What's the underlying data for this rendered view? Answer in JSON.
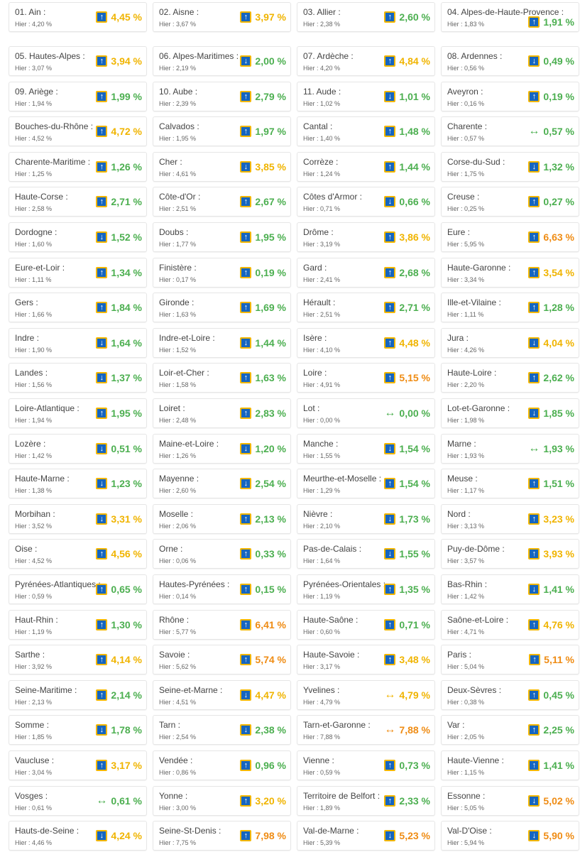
{
  "colors": {
    "green": "#4caf50",
    "yellow": "#f0b400",
    "orange": "#ef8c14",
    "icon_bg": "#1565c0",
    "icon_border": "#f2b600"
  },
  "icons": {
    "up": "arrow-up-icon",
    "down": "arrow-down-icon",
    "stable": "arrow-left-right-icon"
  },
  "glyphs": {
    "up": "↑",
    "down": "↓",
    "stable": "↔"
  },
  "departments": [
    {
      "name": "01. Ain :",
      "yesterday": "Hier : 4,20 %",
      "value": "4,45 %",
      "trend": "up",
      "color": "yellow"
    },
    {
      "name": "02. Aisne :",
      "yesterday": "Hier : 3,67 %",
      "value": "3,97 %",
      "trend": "up",
      "color": "yellow"
    },
    {
      "name": "03. Allier :",
      "yesterday": "Hier : 2,38 %",
      "value": "2,60 %",
      "trend": "up",
      "color": "green"
    },
    {
      "name": "04. Alpes-de-Haute-Provence :",
      "yesterday": "Hier : 1,83 %",
      "value": "1,91 %",
      "trend": "up",
      "color": "green"
    },
    {
      "name": "05. Hautes-Alpes :",
      "yesterday": "Hier : 3,07 %",
      "value": "3,94 %",
      "trend": "up",
      "color": "yellow"
    },
    {
      "name": "06. Alpes-Maritimes :",
      "yesterday": "Hier : 2,19 %",
      "value": "2,00 %",
      "trend": "down",
      "color": "green"
    },
    {
      "name": "07. Ardèche :",
      "yesterday": "Hier : 4,20 %",
      "value": "4,84 %",
      "trend": "up",
      "color": "yellow"
    },
    {
      "name": "08. Ardennes :",
      "yesterday": "Hier : 0,56 %",
      "value": "0,49 %",
      "trend": "down",
      "color": "green"
    },
    {
      "name": "09. Ariège :",
      "yesterday": "Hier : 1,94 %",
      "value": "1,99 %",
      "trend": "up",
      "color": "green"
    },
    {
      "name": "10. Aube :",
      "yesterday": "Hier : 2,39 %",
      "value": "2,79 %",
      "trend": "up",
      "color": "green"
    },
    {
      "name": "11. Aude :",
      "yesterday": "Hier : 1,02 %",
      "value": "1,01 %",
      "trend": "down",
      "color": "green"
    },
    {
      "name": "Aveyron :",
      "yesterday": "Hier : 0,16 %",
      "value": "0,19 %",
      "trend": "up",
      "color": "green"
    },
    {
      "name": "Bouches-du-Rhône :",
      "yesterday": "Hier : 4,52 %",
      "value": "4,72 %",
      "trend": "up",
      "color": "yellow"
    },
    {
      "name": "Calvados :",
      "yesterday": "Hier : 1,95 %",
      "value": "1,97 %",
      "trend": "up",
      "color": "green"
    },
    {
      "name": "Cantal :",
      "yesterday": "Hier : 1,40 %",
      "value": "1,48 %",
      "trend": "up",
      "color": "green"
    },
    {
      "name": "Charente :",
      "yesterday": "Hier : 0,57 %",
      "value": "0,57 %",
      "trend": "stable",
      "color": "green"
    },
    {
      "name": "Charente-Maritime :",
      "yesterday": "Hier : 1,25 %",
      "value": "1,26 %",
      "trend": "up",
      "color": "green"
    },
    {
      "name": "Cher :",
      "yesterday": "Hier : 4,61 %",
      "value": "3,85 %",
      "trend": "down",
      "color": "yellow"
    },
    {
      "name": "Corrèze :",
      "yesterday": "Hier : 1,24 %",
      "value": "1,44 %",
      "trend": "up",
      "color": "green"
    },
    {
      "name": "Corse-du-Sud :",
      "yesterday": "Hier : 1,75 %",
      "value": "1,32 %",
      "trend": "down",
      "color": "green"
    },
    {
      "name": "Haute-Corse :",
      "yesterday": "Hier : 2,58 %",
      "value": "2,71 %",
      "trend": "up",
      "color": "green"
    },
    {
      "name": "Côte-d'Or :",
      "yesterday": "Hier : 2,51 %",
      "value": "2,67 %",
      "trend": "up",
      "color": "green"
    },
    {
      "name": "Côtes d'Armor :",
      "yesterday": "Hier : 0,71 %",
      "value": "0,66 %",
      "trend": "down",
      "color": "green"
    },
    {
      "name": "Creuse :",
      "yesterday": "Hier : 0,25 %",
      "value": "0,27 %",
      "trend": "up",
      "color": "green"
    },
    {
      "name": "Dordogne :",
      "yesterday": "Hier : 1,60 %",
      "value": "1,52 %",
      "trend": "down",
      "color": "green"
    },
    {
      "name": "Doubs :",
      "yesterday": "Hier : 1,77 %",
      "value": "1,95 %",
      "trend": "up",
      "color": "green"
    },
    {
      "name": "Drôme :",
      "yesterday": "Hier : 3,19 %",
      "value": "3,86 %",
      "trend": "up",
      "color": "yellow"
    },
    {
      "name": "Eure :",
      "yesterday": "Hier : 5,95 %",
      "value": "6,63 %",
      "trend": "up",
      "color": "orange"
    },
    {
      "name": "Eure-et-Loir :",
      "yesterday": "Hier : 1,11 %",
      "value": "1,34 %",
      "trend": "up",
      "color": "green"
    },
    {
      "name": "Finistère :",
      "yesterday": "Hier : 0,17 %",
      "value": "0,19 %",
      "trend": "up",
      "color": "green"
    },
    {
      "name": "Gard :",
      "yesterday": "Hier : 2,41 %",
      "value": "2,68 %",
      "trend": "up",
      "color": "green"
    },
    {
      "name": "Haute-Garonne :",
      "yesterday": "Hier : 3,34 %",
      "value": "3,54 %",
      "trend": "up",
      "color": "yellow"
    },
    {
      "name": "Gers :",
      "yesterday": "Hier : 1,66 %",
      "value": "1,84 %",
      "trend": "up",
      "color": "green"
    },
    {
      "name": "Gironde :",
      "yesterday": "Hier : 1,63 %",
      "value": "1,69 %",
      "trend": "up",
      "color": "green"
    },
    {
      "name": "Hérault :",
      "yesterday": "Hier : 2,51 %",
      "value": "2,71 %",
      "trend": "up",
      "color": "green"
    },
    {
      "name": "Ille-et-Vilaine :",
      "yesterday": "Hier : 1,11 %",
      "value": "1,28 %",
      "trend": "up",
      "color": "green"
    },
    {
      "name": "Indre :",
      "yesterday": "Hier : 1,90 %",
      "value": "1,64 %",
      "trend": "down",
      "color": "green"
    },
    {
      "name": "Indre-et-Loire :",
      "yesterday": "Hier : 1,52 %",
      "value": "1,44 %",
      "trend": "down",
      "color": "green"
    },
    {
      "name": "Isère :",
      "yesterday": "Hier : 4,10 %",
      "value": "4,48 %",
      "trend": "up",
      "color": "yellow"
    },
    {
      "name": "Jura :",
      "yesterday": "Hier : 4,26 %",
      "value": "4,04 %",
      "trend": "down",
      "color": "yellow"
    },
    {
      "name": "Landes :",
      "yesterday": "Hier : 1,56 %",
      "value": "1,37 %",
      "trend": "down",
      "color": "green"
    },
    {
      "name": "Loir-et-Cher :",
      "yesterday": "Hier : 1,58 %",
      "value": "1,63 %",
      "trend": "up",
      "color": "green"
    },
    {
      "name": "Loire :",
      "yesterday": "Hier : 4,91 %",
      "value": "5,15 %",
      "trend": "up",
      "color": "orange"
    },
    {
      "name": "Haute-Loire :",
      "yesterday": "Hier : 2,20 %",
      "value": "2,62 %",
      "trend": "up",
      "color": "green"
    },
    {
      "name": "Loire-Atlantique :",
      "yesterday": "Hier : 1,94 %",
      "value": "1,95 %",
      "trend": "up",
      "color": "green"
    },
    {
      "name": "Loiret :",
      "yesterday": "Hier : 2,48 %",
      "value": "2,83 %",
      "trend": "up",
      "color": "green"
    },
    {
      "name": "Lot :",
      "yesterday": "Hier : 0,00 %",
      "value": "0,00 %",
      "trend": "stable",
      "color": "green"
    },
    {
      "name": "Lot-et-Garonne :",
      "yesterday": "Hier : 1,98 %",
      "value": "1,85 %",
      "trend": "down",
      "color": "green"
    },
    {
      "name": "Lozère :",
      "yesterday": "Hier : 1,42 %",
      "value": "0,51 %",
      "trend": "down",
      "color": "green"
    },
    {
      "name": "Maine-et-Loire :",
      "yesterday": "Hier : 1,26 %",
      "value": "1,20 %",
      "trend": "down",
      "color": "green"
    },
    {
      "name": "Manche :",
      "yesterday": "Hier : 1,55 %",
      "value": "1,54 %",
      "trend": "down",
      "color": "green"
    },
    {
      "name": "Marne :",
      "yesterday": "Hier : 1,93 %",
      "value": "1,93 %",
      "trend": "stable",
      "color": "green"
    },
    {
      "name": "Haute-Marne :",
      "yesterday": "Hier : 1,38 %",
      "value": "1,23 %",
      "trend": "down",
      "color": "green"
    },
    {
      "name": "Mayenne :",
      "yesterday": "Hier : 2,60 %",
      "value": "2,54 %",
      "trend": "down",
      "color": "green"
    },
    {
      "name": "Meurthe-et-Moselle :",
      "yesterday": "Hier : 1,29 %",
      "value": "1,54 %",
      "trend": "up",
      "color": "green"
    },
    {
      "name": "Meuse :",
      "yesterday": "Hier : 1,17 %",
      "value": "1,51 %",
      "trend": "up",
      "color": "green"
    },
    {
      "name": "Morbihan :",
      "yesterday": "Hier : 3,52 %",
      "value": "3,31 %",
      "trend": "down",
      "color": "yellow"
    },
    {
      "name": "Moselle :",
      "yesterday": "Hier : 2,06 %",
      "value": "2,13 %",
      "trend": "up",
      "color": "green"
    },
    {
      "name": "Nièvre :",
      "yesterday": "Hier : 2,10 %",
      "value": "1,73 %",
      "trend": "down",
      "color": "green"
    },
    {
      "name": "Nord :",
      "yesterday": "Hier : 3,13 %",
      "value": "3,23 %",
      "trend": "up",
      "color": "yellow"
    },
    {
      "name": "Oise :",
      "yesterday": "Hier : 4,52 %",
      "value": "4,56 %",
      "trend": "up",
      "color": "yellow"
    },
    {
      "name": "Orne :",
      "yesterday": "Hier : 0,06 %",
      "value": "0,33 %",
      "trend": "up",
      "color": "green"
    },
    {
      "name": "Pas-de-Calais :",
      "yesterday": "Hier : 1,64 %",
      "value": "1,55 %",
      "trend": "down",
      "color": "green"
    },
    {
      "name": "Puy-de-Dôme :",
      "yesterday": "Hier : 3,57 %",
      "value": "3,93 %",
      "trend": "up",
      "color": "yellow"
    },
    {
      "name": "Pyrénées-Atlantiques :",
      "yesterday": "Hier : 0,59 %",
      "value": "0,65 %",
      "trend": "up",
      "color": "green"
    },
    {
      "name": "Hautes-Pyrénées :",
      "yesterday": "Hier : 0,14 %",
      "value": "0,15 %",
      "trend": "up",
      "color": "green"
    },
    {
      "name": "Pyrénées-Orientales :",
      "yesterday": "Hier : 1,19 %",
      "value": "1,35 %",
      "trend": "up",
      "color": "green"
    },
    {
      "name": "Bas-Rhin :",
      "yesterday": "Hier : 1,42 %",
      "value": "1,41 %",
      "trend": "down",
      "color": "green"
    },
    {
      "name": "Haut-Rhin :",
      "yesterday": "Hier : 1,19 %",
      "value": "1,30 %",
      "trend": "up",
      "color": "green"
    },
    {
      "name": "Rhône :",
      "yesterday": "Hier : 5,77 %",
      "value": "6,41 %",
      "trend": "up",
      "color": "orange"
    },
    {
      "name": "Haute-Saône :",
      "yesterday": "Hier : 0,60 %",
      "value": "0,71 %",
      "trend": "up",
      "color": "green"
    },
    {
      "name": "Saône-et-Loire :",
      "yesterday": "Hier : 4,71 %",
      "value": "4,76 %",
      "trend": "up",
      "color": "yellow"
    },
    {
      "name": "Sarthe :",
      "yesterday": "Hier : 3,92 %",
      "value": "4,14 %",
      "trend": "up",
      "color": "yellow"
    },
    {
      "name": "Savoie :",
      "yesterday": "Hier : 5,62 %",
      "value": "5,74 %",
      "trend": "up",
      "color": "orange"
    },
    {
      "name": "Haute-Savoie :",
      "yesterday": "Hier : 3,17 %",
      "value": "3,48 %",
      "trend": "up",
      "color": "yellow"
    },
    {
      "name": "Paris :",
      "yesterday": "Hier : 5,04 %",
      "value": "5,11 %",
      "trend": "up",
      "color": "orange"
    },
    {
      "name": "Seine-Maritime :",
      "yesterday": "Hier : 2,13 %",
      "value": "2,14 %",
      "trend": "up",
      "color": "green"
    },
    {
      "name": "Seine-et-Marne :",
      "yesterday": "Hier : 4,51 %",
      "value": "4,47 %",
      "trend": "down",
      "color": "yellow"
    },
    {
      "name": "Yvelines :",
      "yesterday": "Hier : 4,79 %",
      "value": "4,79 %",
      "trend": "stable",
      "color": "yellow"
    },
    {
      "name": "Deux-Sèvres :",
      "yesterday": "Hier : 0,38 %",
      "value": "0,45 %",
      "trend": "up",
      "color": "green"
    },
    {
      "name": "Somme :",
      "yesterday": "Hier : 1,85 %",
      "value": "1,78 %",
      "trend": "down",
      "color": "green"
    },
    {
      "name": "Tarn :",
      "yesterday": "Hier : 2,54 %",
      "value": "2,38 %",
      "trend": "down",
      "color": "green"
    },
    {
      "name": "Tarn-et-Garonne :",
      "yesterday": "Hier : 7,88 %",
      "value": "7,88 %",
      "trend": "stable",
      "color": "orange"
    },
    {
      "name": "Var :",
      "yesterday": "Hier : 2,05 %",
      "value": "2,25 %",
      "trend": "up",
      "color": "green"
    },
    {
      "name": "Vaucluse :",
      "yesterday": "Hier : 3,04 %",
      "value": "3,17 %",
      "trend": "up",
      "color": "yellow"
    },
    {
      "name": "Vendée :",
      "yesterday": "Hier : 0,86 %",
      "value": "0,96 %",
      "trend": "up",
      "color": "green"
    },
    {
      "name": "Vienne :",
      "yesterday": "Hier : 0,59 %",
      "value": "0,73 %",
      "trend": "up",
      "color": "green"
    },
    {
      "name": "Haute-Vienne :",
      "yesterday": "Hier : 1,15 %",
      "value": "1,41 %",
      "trend": "up",
      "color": "green"
    },
    {
      "name": "Vosges :",
      "yesterday": "Hier : 0,61 %",
      "value": "0,61 %",
      "trend": "stable",
      "color": "green"
    },
    {
      "name": "Yonne :",
      "yesterday": "Hier : 3,00 %",
      "value": "3,20 %",
      "trend": "up",
      "color": "yellow"
    },
    {
      "name": "Territoire de Belfort :",
      "yesterday": "Hier : 1,89 %",
      "value": "2,33 %",
      "trend": "up",
      "color": "green"
    },
    {
      "name": "Essonne :",
      "yesterday": "Hier : 5,05 %",
      "value": "5,02 %",
      "trend": "down",
      "color": "orange"
    },
    {
      "name": "Hauts-de-Seine :",
      "yesterday": "Hier : 4,46 %",
      "value": "4,24 %",
      "trend": "down",
      "color": "yellow"
    },
    {
      "name": "Seine-St-Denis :",
      "yesterday": "Hier : 7,75 %",
      "value": "7,98 %",
      "trend": "up",
      "color": "orange"
    },
    {
      "name": "Val-de-Marne :",
      "yesterday": "Hier : 5,39 %",
      "value": "5,23 %",
      "trend": "down",
      "color": "orange"
    },
    {
      "name": "Val-D'Oise :",
      "yesterday": "Hier : 5,94 %",
      "value": "5,90 %",
      "trend": "down",
      "color": "orange"
    }
  ]
}
